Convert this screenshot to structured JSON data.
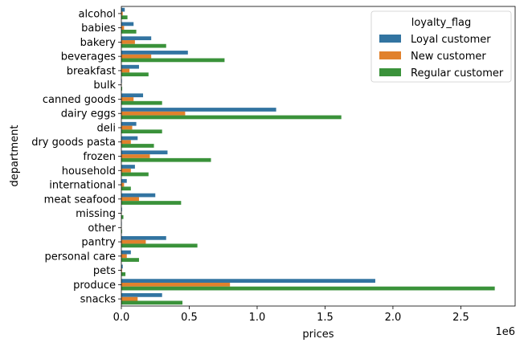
{
  "chart_data": {
    "type": "bar",
    "orientation": "horizontal",
    "xlabel": "prices",
    "ylabel": "department",
    "x_scale_note": "1e6",
    "xlim": [
      0,
      2.9
    ],
    "x_ticks": [
      "0.0",
      "0.5",
      "1.0",
      "1.5",
      "2.0",
      "2.5"
    ],
    "x_tick_values": [
      0,
      0.5,
      1.0,
      1.5,
      2.0,
      2.5
    ],
    "grid": false,
    "legend": {
      "title": "loyalty_flag",
      "placement": "top-right"
    },
    "categories": [
      "alcohol",
      "babies",
      "bakery",
      "beverages",
      "breakfast",
      "bulk",
      "canned goods",
      "dairy eggs",
      "deli",
      "dry goods pasta",
      "frozen",
      "household",
      "international",
      "meat seafood",
      "missing",
      "other",
      "pantry",
      "personal care",
      "pets",
      "produce",
      "snacks"
    ],
    "series": [
      {
        "name": "Loyal customer",
        "color": "#3274a1",
        "values": [
          0.025,
          0.09,
          0.22,
          0.49,
          0.13,
          0.004,
          0.16,
          1.14,
          0.11,
          0.12,
          0.34,
          0.1,
          0.04,
          0.25,
          0.005,
          0.003,
          0.33,
          0.07,
          0.01,
          1.87,
          0.3
        ]
      },
      {
        "name": "New customer",
        "color": "#e1812c",
        "values": [
          0.01,
          0.02,
          0.1,
          0.22,
          0.06,
          0.002,
          0.09,
          0.47,
          0.08,
          0.07,
          0.21,
          0.07,
          0.02,
          0.13,
          0.002,
          0.001,
          0.18,
          0.04,
          0.005,
          0.8,
          0.12
        ]
      },
      {
        "name": "Regular customer",
        "color": "#3a923a",
        "values": [
          0.045,
          0.11,
          0.33,
          0.76,
          0.2,
          0.006,
          0.3,
          1.62,
          0.3,
          0.24,
          0.66,
          0.2,
          0.07,
          0.44,
          0.015,
          0.005,
          0.56,
          0.13,
          0.03,
          2.75,
          0.45
        ]
      }
    ]
  }
}
